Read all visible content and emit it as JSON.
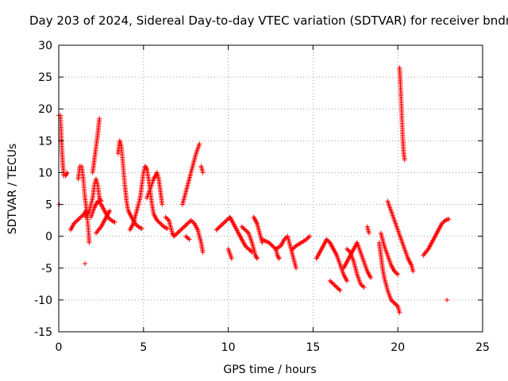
{
  "chart_data": {
    "type": "scatter",
    "title": "Day 203 of 2024, Sidereal Day-to-day VTEC variation (SDTVAR) for receiver bndr",
    "xlabel": "GPS time / hours",
    "ylabel": "SDTVAR / TECUs",
    "xlim": [
      0,
      25
    ],
    "ylim": [
      -15,
      30
    ],
    "xticks": [
      0,
      5,
      10,
      15,
      20,
      25
    ],
    "yticks": [
      -15,
      -10,
      -5,
      0,
      5,
      10,
      15,
      20,
      25,
      30
    ],
    "grid": true,
    "marker": "+",
    "color": "#ff0000",
    "series": [
      {
        "name": "SDTVAR",
        "segments": [
          [
            [
              0.0,
              19.0
            ],
            [
              0.1,
              19.0
            ],
            [
              0.15,
              16.0
            ],
            [
              0.2,
              13.0
            ],
            [
              0.25,
              11.0
            ],
            [
              0.3,
              9.5
            ],
            [
              0.4,
              9.5
            ],
            [
              0.5,
              10.0
            ]
          ],
          [
            [
              0.03,
              5.0
            ]
          ],
          [
            [
              0.7,
              1.0
            ],
            [
              0.9,
              2.0
            ],
            [
              1.1,
              2.5
            ],
            [
              1.3,
              3.0
            ],
            [
              1.5,
              3.5
            ],
            [
              1.6,
              4.0
            ]
          ],
          [
            [
              1.15,
              9.0
            ],
            [
              1.25,
              11.0
            ],
            [
              1.35,
              11.0
            ],
            [
              1.45,
              9.0
            ],
            [
              1.55,
              6.0
            ],
            [
              1.65,
              4.0
            ],
            [
              1.75,
              1.0
            ],
            [
              1.8,
              -1.0
            ]
          ],
          [
            [
              1.55,
              -4.3
            ]
          ],
          [
            [
              1.6,
              3.0
            ],
            [
              1.8,
              4.0
            ],
            [
              2.0,
              6.0
            ],
            [
              2.1,
              8.0
            ],
            [
              2.2,
              9.0
            ],
            [
              2.3,
              8.0
            ],
            [
              2.4,
              6.0
            ],
            [
              2.5,
              5.5
            ]
          ],
          [
            [
              2.0,
              10.0
            ],
            [
              2.1,
              12.0
            ],
            [
              2.2,
              14.0
            ],
            [
              2.3,
              16.0
            ],
            [
              2.4,
              18.5
            ]
          ],
          [
            [
              1.9,
              3.0
            ],
            [
              2.1,
              4.5
            ],
            [
              2.3,
              5.5
            ],
            [
              2.5,
              5.0
            ],
            [
              2.7,
              4.0
            ],
            [
              2.9,
              3.0
            ],
            [
              3.1,
              2.5
            ],
            [
              3.3,
              2.2
            ]
          ],
          [
            [
              2.2,
              0.5
            ],
            [
              2.5,
              1.5
            ],
            [
              2.7,
              2.5
            ],
            [
              2.9,
              3.5
            ],
            [
              3.0,
              4.0
            ]
          ],
          [
            [
              3.5,
              13.0
            ],
            [
              3.6,
              15.0
            ],
            [
              3.7,
              14.0
            ],
            [
              3.8,
              11.0
            ],
            [
              3.9,
              8.0
            ],
            [
              4.0,
              5.5
            ],
            [
              4.1,
              4.0
            ],
            [
              4.3,
              3.0
            ],
            [
              4.5,
              2.0
            ],
            [
              4.7,
              1.5
            ],
            [
              4.9,
              1.2
            ]
          ],
          [
            [
              4.2,
              1.0
            ],
            [
              4.4,
              2.0
            ],
            [
              4.6,
              4.0
            ],
            [
              4.8,
              6.0
            ],
            [
              4.9,
              8.0
            ],
            [
              5.0,
              10.0
            ],
            [
              5.1,
              11.0
            ],
            [
              5.2,
              10.5
            ],
            [
              5.3,
              9.0
            ],
            [
              5.4,
              7.0
            ],
            [
              5.5,
              5.0
            ],
            [
              5.6,
              3.5
            ],
            [
              5.8,
              2.5
            ],
            [
              6.0,
              2.0
            ],
            [
              6.2,
              1.5
            ],
            [
              6.4,
              1.2
            ]
          ],
          [
            [
              5.2,
              6.0
            ],
            [
              5.4,
              7.5
            ],
            [
              5.6,
              9.0
            ],
            [
              5.8,
              10.0
            ],
            [
              5.9,
              9.0
            ],
            [
              6.0,
              7.0
            ],
            [
              6.1,
              5.0
            ]
          ],
          [
            [
              6.3,
              3.0
            ],
            [
              6.5,
              2.5
            ],
            [
              6.6,
              1.5
            ],
            [
              6.7,
              0.5
            ],
            [
              6.8,
              0.0
            ],
            [
              7.0,
              0.5
            ],
            [
              7.2,
              1.0
            ],
            [
              7.4,
              1.5
            ],
            [
              7.6,
              2.0
            ],
            [
              7.8,
              2.5
            ],
            [
              8.0,
              2.0
            ],
            [
              8.2,
              1.0
            ],
            [
              8.4,
              -1.0
            ],
            [
              8.5,
              -2.5
            ]
          ],
          [
            [
              7.5,
              0.0
            ],
            [
              7.7,
              -0.5
            ]
          ],
          [
            [
              7.3,
              5.0
            ],
            [
              7.5,
              7.0
            ],
            [
              7.7,
              9.0
            ],
            [
              7.9,
              11.0
            ],
            [
              8.1,
              13.0
            ],
            [
              8.3,
              14.5
            ]
          ],
          [
            [
              8.4,
              11.0
            ],
            [
              8.5,
              10.0
            ]
          ],
          [
            [
              9.3,
              1.0
            ],
            [
              9.5,
              1.5
            ],
            [
              9.7,
              2.0
            ],
            [
              9.9,
              2.5
            ],
            [
              10.1,
              3.0
            ],
            [
              10.2,
              2.5
            ],
            [
              10.4,
              1.5
            ],
            [
              10.6,
              0.5
            ],
            [
              10.8,
              -0.5
            ],
            [
              11.0,
              -1.5
            ],
            [
              11.2,
              -2.0
            ],
            [
              11.4,
              -2.5
            ]
          ],
          [
            [
              10.0,
              -2.0
            ],
            [
              10.2,
              -3.5
            ]
          ],
          [
            [
              10.8,
              1.5
            ],
            [
              11.0,
              1.0
            ],
            [
              11.2,
              0.5
            ],
            [
              11.4,
              -1.0
            ],
            [
              11.6,
              -3.0
            ],
            [
              11.7,
              -3.5
            ]
          ],
          [
            [
              11.5,
              3.0
            ],
            [
              11.7,
              2.0
            ],
            [
              11.9,
              0.0
            ],
            [
              12.0,
              -1.0
            ]
          ],
          [
            [
              12.0,
              -0.5
            ],
            [
              12.4,
              -1.0
            ],
            [
              12.6,
              -1.5
            ],
            [
              12.8,
              -2.0
            ],
            [
              12.9,
              -3.0
            ],
            [
              13.0,
              -3.5
            ]
          ],
          [
            [
              12.8,
              -2.0
            ],
            [
              13.1,
              -1.5
            ],
            [
              13.3,
              -0.5
            ],
            [
              13.5,
              0.0
            ],
            [
              13.6,
              -1.0
            ],
            [
              13.7,
              -2.0
            ],
            [
              13.8,
              -3.0
            ],
            [
              13.9,
              -4.0
            ],
            [
              14.0,
              -5.0
            ]
          ],
          [
            [
              13.8,
              -2.0
            ],
            [
              14.0,
              -1.5
            ],
            [
              14.3,
              -1.0
            ],
            [
              14.6,
              -0.5
            ],
            [
              14.8,
              0.0
            ]
          ],
          [
            [
              15.2,
              -3.5
            ],
            [
              15.4,
              -2.5
            ],
            [
              15.6,
              -1.5
            ],
            [
              15.8,
              -0.5
            ],
            [
              16.0,
              -1.0
            ],
            [
              16.2,
              -2.0
            ],
            [
              16.4,
              -3.0
            ],
            [
              16.6,
              -4.5
            ],
            [
              16.8,
              -6.0
            ],
            [
              17.0,
              -7.0
            ]
          ],
          [
            [
              16.0,
              -7.0
            ],
            [
              16.2,
              -7.5
            ],
            [
              16.4,
              -8.0
            ],
            [
              16.6,
              -8.5
            ]
          ],
          [
            [
              16.8,
              -5.0
            ],
            [
              17.0,
              -4.0
            ],
            [
              17.2,
              -3.0
            ],
            [
              17.4,
              -2.0
            ],
            [
              17.6,
              -1.0
            ],
            [
              17.8,
              -2.5
            ],
            [
              18.0,
              -4.0
            ],
            [
              18.2,
              -5.5
            ],
            [
              18.4,
              -6.5
            ]
          ],
          [
            [
              17.0,
              -2.0
            ],
            [
              17.2,
              -2.5
            ],
            [
              17.4,
              -4.0
            ],
            [
              17.6,
              -6.0
            ],
            [
              17.8,
              -7.5
            ],
            [
              18.0,
              -8.0
            ]
          ],
          [
            [
              18.2,
              1.5
            ],
            [
              18.3,
              0.5
            ]
          ],
          [
            [
              18.9,
              -1.0
            ],
            [
              19.0,
              -3.0
            ],
            [
              19.1,
              -5.0
            ],
            [
              19.2,
              -6.5
            ],
            [
              19.3,
              -7.5
            ],
            [
              19.4,
              -8.5
            ],
            [
              19.6,
              -10.0
            ],
            [
              19.8,
              -10.5
            ],
            [
              20.0,
              -11.0
            ],
            [
              20.1,
              -12.0
            ]
          ],
          [
            [
              19.0,
              0.5
            ],
            [
              19.2,
              -1.5
            ],
            [
              19.4,
              -3.0
            ],
            [
              19.6,
              -4.5
            ],
            [
              19.8,
              -5.5
            ],
            [
              20.0,
              -6.0
            ]
          ],
          [
            [
              19.4,
              5.5
            ],
            [
              19.6,
              4.0
            ],
            [
              19.8,
              2.5
            ],
            [
              20.0,
              1.0
            ],
            [
              20.2,
              -0.5
            ],
            [
              20.4,
              -2.0
            ],
            [
              20.6,
              -3.5
            ],
            [
              20.8,
              -4.5
            ],
            [
              20.9,
              -5.5
            ]
          ],
          [
            [
              20.1,
              26.5
            ],
            [
              20.15,
              24.0
            ],
            [
              20.2,
              21.0
            ],
            [
              20.25,
              18.0
            ],
            [
              20.3,
              15.0
            ],
            [
              20.35,
              13.0
            ],
            [
              20.4,
              12.0
            ]
          ],
          [
            [
              21.5,
              -3.0
            ],
            [
              21.8,
              -2.0
            ],
            [
              22.0,
              -1.0
            ],
            [
              22.2,
              0.0
            ],
            [
              22.4,
              1.0
            ],
            [
              22.6,
              2.0
            ],
            [
              22.8,
              2.5
            ],
            [
              23.0,
              2.7
            ]
          ],
          [
            [
              22.9,
              -10.0
            ]
          ]
        ]
      }
    ]
  }
}
